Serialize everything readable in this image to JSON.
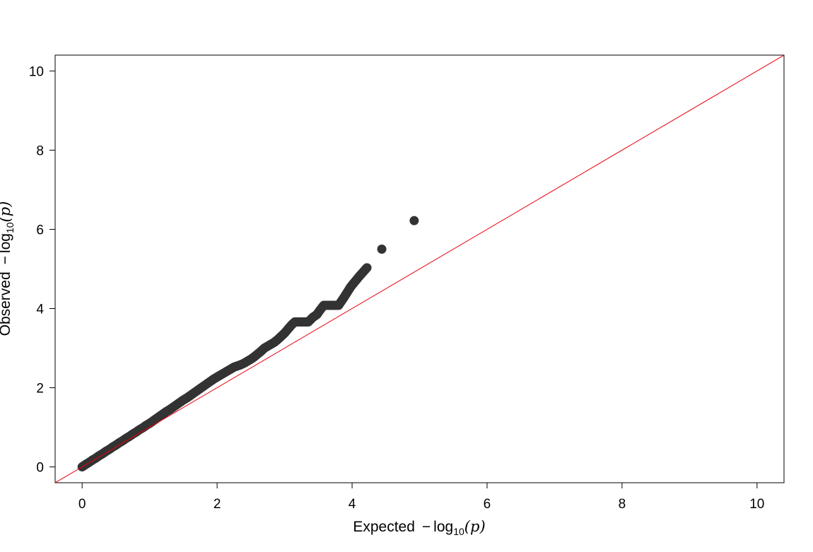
{
  "chart_data": {
    "type": "scatter",
    "title": "",
    "xlabel": {
      "prefix": "Expected",
      "minus": "−",
      "log": "log",
      "base": "10",
      "open": "(",
      "var": "p",
      "close": ")"
    },
    "ylabel": {
      "prefix": "Observed",
      "minus": "−",
      "log": "log",
      "base": "10",
      "open": "(",
      "var": "p",
      "close": ")"
    },
    "xlim": [
      -0.4,
      10.4
    ],
    "ylim": [
      -0.4,
      10.4
    ],
    "x_ticks": [
      0,
      2,
      4,
      6,
      8,
      10
    ],
    "y_ticks": [
      0,
      2,
      4,
      6,
      8,
      10
    ],
    "x_tick_labels": [
      "0",
      "2",
      "4",
      "6",
      "8",
      "10"
    ],
    "y_tick_labels": [
      "0",
      "2",
      "4",
      "6",
      "8",
      "10"
    ],
    "grid": false,
    "reference_line": {
      "from": [
        -0.4,
        -0.4
      ],
      "to": [
        10.4,
        10.4
      ],
      "color": "#e8000b"
    },
    "point_color": "#333333",
    "points": [
      {
        "x": 0.0,
        "y": 0.0
      },
      {
        "x": 0.05,
        "y": 0.06
      },
      {
        "x": 0.1,
        "y": 0.11
      },
      {
        "x": 0.15,
        "y": 0.17
      },
      {
        "x": 0.2,
        "y": 0.22
      },
      {
        "x": 0.25,
        "y": 0.28
      },
      {
        "x": 0.3,
        "y": 0.33
      },
      {
        "x": 0.35,
        "y": 0.39
      },
      {
        "x": 0.4,
        "y": 0.44
      },
      {
        "x": 0.45,
        "y": 0.5
      },
      {
        "x": 0.5,
        "y": 0.55
      },
      {
        "x": 0.55,
        "y": 0.61
      },
      {
        "x": 0.6,
        "y": 0.66
      },
      {
        "x": 0.65,
        "y": 0.72
      },
      {
        "x": 0.7,
        "y": 0.77
      },
      {
        "x": 0.75,
        "y": 0.83
      },
      {
        "x": 0.8,
        "y": 0.88
      },
      {
        "x": 0.85,
        "y": 0.94
      },
      {
        "x": 0.9,
        "y": 0.99
      },
      {
        "x": 0.95,
        "y": 1.05
      },
      {
        "x": 1.0,
        "y": 1.1
      },
      {
        "x": 1.05,
        "y": 1.16
      },
      {
        "x": 1.1,
        "y": 1.22
      },
      {
        "x": 1.15,
        "y": 1.28
      },
      {
        "x": 1.2,
        "y": 1.34
      },
      {
        "x": 1.25,
        "y": 1.4
      },
      {
        "x": 1.3,
        "y": 1.45
      },
      {
        "x": 1.35,
        "y": 1.51
      },
      {
        "x": 1.4,
        "y": 1.57
      },
      {
        "x": 1.45,
        "y": 1.63
      },
      {
        "x": 1.5,
        "y": 1.69
      },
      {
        "x": 1.55,
        "y": 1.74
      },
      {
        "x": 1.6,
        "y": 1.8
      },
      {
        "x": 1.65,
        "y": 1.86
      },
      {
        "x": 1.7,
        "y": 1.92
      },
      {
        "x": 1.75,
        "y": 1.98
      },
      {
        "x": 1.8,
        "y": 2.04
      },
      {
        "x": 1.85,
        "y": 2.1
      },
      {
        "x": 1.9,
        "y": 2.16
      },
      {
        "x": 1.95,
        "y": 2.22
      },
      {
        "x": 2.0,
        "y": 2.27
      },
      {
        "x": 2.05,
        "y": 2.32
      },
      {
        "x": 2.1,
        "y": 2.37
      },
      {
        "x": 2.15,
        "y": 2.42
      },
      {
        "x": 2.2,
        "y": 2.47
      },
      {
        "x": 2.25,
        "y": 2.52
      },
      {
        "x": 2.3,
        "y": 2.55
      },
      {
        "x": 2.35,
        "y": 2.58
      },
      {
        "x": 2.4,
        "y": 2.62
      },
      {
        "x": 2.45,
        "y": 2.67
      },
      {
        "x": 2.5,
        "y": 2.72
      },
      {
        "x": 2.55,
        "y": 2.78
      },
      {
        "x": 2.6,
        "y": 2.85
      },
      {
        "x": 2.65,
        "y": 2.92
      },
      {
        "x": 2.7,
        "y": 3.0
      },
      {
        "x": 2.75,
        "y": 3.05
      },
      {
        "x": 2.8,
        "y": 3.1
      },
      {
        "x": 2.85,
        "y": 3.15
      },
      {
        "x": 2.9,
        "y": 3.22
      },
      {
        "x": 2.95,
        "y": 3.3
      },
      {
        "x": 3.0,
        "y": 3.38
      },
      {
        "x": 3.05,
        "y": 3.48
      },
      {
        "x": 3.1,
        "y": 3.58
      },
      {
        "x": 3.15,
        "y": 3.66
      },
      {
        "x": 3.25,
        "y": 3.66
      },
      {
        "x": 3.35,
        "y": 3.66
      },
      {
        "x": 3.42,
        "y": 3.78
      },
      {
        "x": 3.48,
        "y": 3.85
      },
      {
        "x": 3.52,
        "y": 3.95
      },
      {
        "x": 3.58,
        "y": 4.08
      },
      {
        "x": 3.65,
        "y": 4.08
      },
      {
        "x": 3.72,
        "y": 4.08
      },
      {
        "x": 3.8,
        "y": 4.08
      },
      {
        "x": 3.88,
        "y": 4.28
      },
      {
        "x": 3.98,
        "y": 4.55
      },
      {
        "x": 4.1,
        "y": 4.8
      },
      {
        "x": 4.22,
        "y": 5.03
      },
      {
        "x": 4.44,
        "y": 5.5
      },
      {
        "x": 4.92,
        "y": 6.22
      }
    ]
  }
}
